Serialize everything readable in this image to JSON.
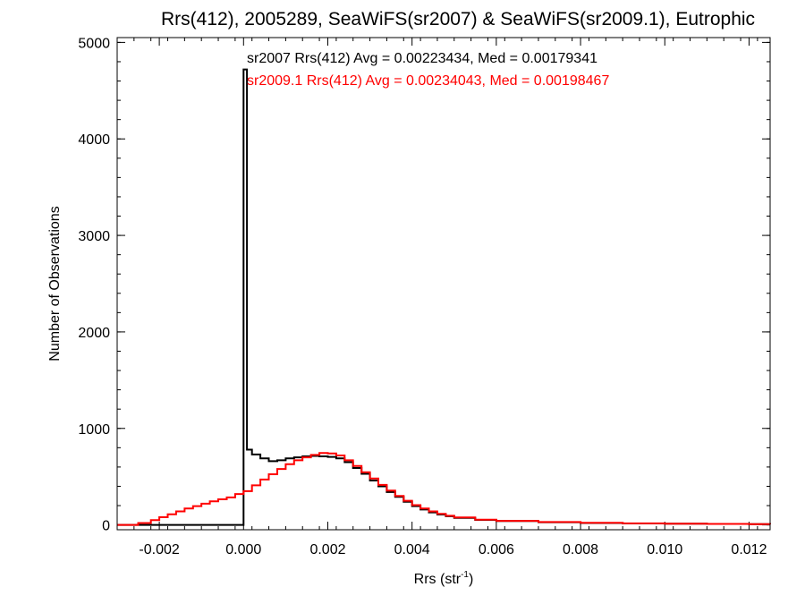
{
  "chart_data": {
    "type": "line",
    "title": "Rrs(412), 2005289, SeaWiFS(sr2007) & SeaWiFS(sr2009.1), Eutrophic",
    "xlabel_main": "Rrs (str",
    "xlabel_sup": "-1",
    "xlabel_close": ")",
    "ylabel": "Number of Observations",
    "xlim": [
      -0.003,
      0.0125
    ],
    "ylim": [
      -50,
      5050
    ],
    "x_ticks": [
      -0.002,
      0.0,
      0.002,
      0.004,
      0.006,
      0.008,
      0.01,
      0.012
    ],
    "x_tick_labels": [
      "-0.002",
      "0.000",
      "0.002",
      "0.004",
      "0.006",
      "0.008",
      "0.010",
      "0.012"
    ],
    "y_ticks": [
      0,
      1000,
      2000,
      3000,
      4000,
      5000
    ],
    "y_tick_labels": [
      "0",
      "1000",
      "2000",
      "3000",
      "4000",
      "5000"
    ],
    "grid": false,
    "annotations": [
      {
        "text": "sr2007 Rrs(412) Avg = 0.00223434, Med = 0.00179341",
        "color": "#000000"
      },
      {
        "text": "sr2009.1 Rrs(412) Avg = 0.00234043, Med = 0.00198467",
        "color": "#ff0000"
      }
    ],
    "series": [
      {
        "color": "#000000",
        "step": true,
        "points": [
          [
            -0.003,
            0
          ],
          [
            0.0,
            0
          ],
          [
            0.0,
            4720
          ],
          [
            8e-05,
            4720
          ],
          [
            8e-05,
            780
          ],
          [
            0.0002,
            730
          ],
          [
            0.0004,
            690
          ],
          [
            0.0006,
            660
          ],
          [
            0.0008,
            670
          ],
          [
            0.001,
            690
          ],
          [
            0.0012,
            700
          ],
          [
            0.0014,
            710
          ],
          [
            0.0016,
            715
          ],
          [
            0.0018,
            710
          ],
          [
            0.002,
            705
          ],
          [
            0.0022,
            690
          ],
          [
            0.0024,
            650
          ],
          [
            0.0026,
            590
          ],
          [
            0.0028,
            530
          ],
          [
            0.003,
            460
          ],
          [
            0.0032,
            400
          ],
          [
            0.0034,
            340
          ],
          [
            0.0036,
            290
          ],
          [
            0.0038,
            240
          ],
          [
            0.004,
            195
          ],
          [
            0.0042,
            160
          ],
          [
            0.0044,
            130
          ],
          [
            0.0046,
            108
          ],
          [
            0.0048,
            90
          ],
          [
            0.005,
            72
          ],
          [
            0.0055,
            52
          ],
          [
            0.006,
            40
          ],
          [
            0.007,
            28
          ],
          [
            0.008,
            20
          ],
          [
            0.009,
            15
          ],
          [
            0.01,
            12
          ],
          [
            0.011,
            10
          ],
          [
            0.012,
            8
          ],
          [
            0.0125,
            7
          ]
        ]
      },
      {
        "color": "#ff0000",
        "step": true,
        "points": [
          [
            -0.003,
            0
          ],
          [
            -0.0025,
            20
          ],
          [
            -0.0022,
            50
          ],
          [
            -0.002,
            80
          ],
          [
            -0.0018,
            110
          ],
          [
            -0.0016,
            140
          ],
          [
            -0.0014,
            170
          ],
          [
            -0.0012,
            195
          ],
          [
            -0.001,
            220
          ],
          [
            -0.0008,
            245
          ],
          [
            -0.0006,
            265
          ],
          [
            -0.0004,
            285
          ],
          [
            -0.0002,
            320
          ],
          [
            0.0,
            350
          ],
          [
            0.0002,
            410
          ],
          [
            0.0004,
            470
          ],
          [
            0.0006,
            525
          ],
          [
            0.0008,
            580
          ],
          [
            0.001,
            630
          ],
          [
            0.0012,
            670
          ],
          [
            0.0014,
            700
          ],
          [
            0.0016,
            725
          ],
          [
            0.0018,
            745
          ],
          [
            0.002,
            740
          ],
          [
            0.0022,
            720
          ],
          [
            0.0024,
            670
          ],
          [
            0.0026,
            610
          ],
          [
            0.0028,
            545
          ],
          [
            0.003,
            480
          ],
          [
            0.0032,
            415
          ],
          [
            0.0034,
            355
          ],
          [
            0.0036,
            300
          ],
          [
            0.0038,
            250
          ],
          [
            0.004,
            205
          ],
          [
            0.0042,
            170
          ],
          [
            0.0044,
            140
          ],
          [
            0.0046,
            115
          ],
          [
            0.0048,
            95
          ],
          [
            0.005,
            78
          ],
          [
            0.0055,
            55
          ],
          [
            0.006,
            42
          ],
          [
            0.007,
            30
          ],
          [
            0.008,
            22
          ],
          [
            0.009,
            16
          ],
          [
            0.01,
            12
          ],
          [
            0.011,
            10
          ],
          [
            0.012,
            8
          ],
          [
            0.0125,
            7
          ]
        ]
      }
    ]
  }
}
